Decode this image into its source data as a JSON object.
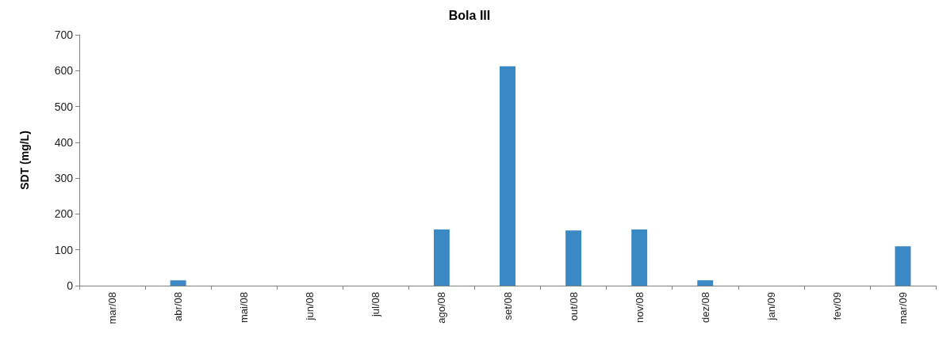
{
  "chart_data": {
    "type": "bar",
    "title": "Bola III",
    "ylabel": "SDT (mg/L)",
    "categories": [
      "mar/08",
      "abr/08",
      "mai/08",
      "jun/08",
      "jul/08",
      "ago/08",
      "set/08",
      "out/08",
      "nov/08",
      "dez/08",
      "jan/09",
      "fev/09",
      "mar/09"
    ],
    "values": [
      0,
      15,
      0,
      0,
      0,
      157,
      612,
      154,
      157,
      15,
      0,
      0,
      110
    ],
    "color": "#3a88c4",
    "ylim": [
      0,
      700
    ],
    "yticks": [
      0,
      100,
      200,
      300,
      400,
      500,
      600,
      700
    ],
    "grid": false
  }
}
